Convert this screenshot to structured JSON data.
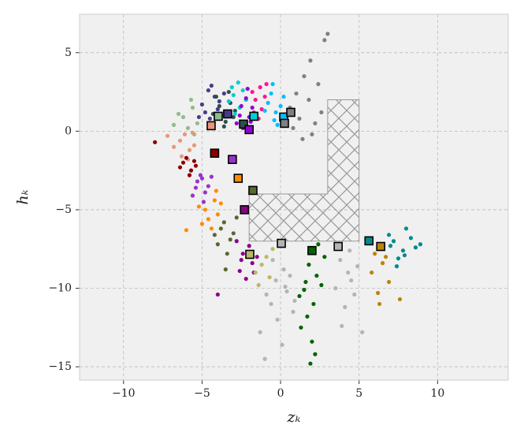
{
  "chart_data": {
    "type": "scatter",
    "xlabel": "zₖ",
    "ylabel": "hₖ",
    "xlim": [
      -12.8,
      14.5
    ],
    "ylim": [
      -15.85,
      7.45
    ],
    "xticks": [
      {
        "value": -10,
        "label": "−10"
      },
      {
        "value": -5,
        "label": "−5"
      },
      0,
      5,
      10
    ],
    "yticks": [
      {
        "value": -15,
        "label": "−15"
      },
      {
        "value": -10,
        "label": "−10"
      },
      {
        "value": -5,
        "label": "−5"
      },
      0,
      5
    ],
    "grid": true,
    "region": {
      "x": [
        3,
        5,
        5,
        -2,
        -2,
        3
      ],
      "y": [
        2,
        2,
        -7,
        -7,
        -4,
        -4
      ]
    },
    "series": [
      {
        "color": "#483d8b",
        "x": [
          -4.8,
          -4.2,
          -5.0,
          -4.5,
          -3.9,
          -4.6,
          -5.2,
          -4.0,
          -4.4,
          -3.6
        ],
        "y": [
          1.2,
          2.2,
          1.7,
          0.8,
          1.9,
          2.6,
          0.9,
          1.4,
          2.9,
          2.4
        ]
      },
      {
        "color": "#2f4f4f",
        "x": [
          -3.8,
          -3.2,
          -4.1,
          -3.5,
          -2.9,
          -3.9,
          -3.3,
          -3.6,
          -4.3,
          -3.0
        ],
        "y": [
          1.0,
          1.8,
          2.2,
          0.6,
          1.3,
          1.6,
          2.5,
          0.3,
          1.1,
          0.9
        ]
      },
      {
        "color": "#00ced1",
        "x": [
          -3.0,
          -2.6,
          -3.3,
          -2.4,
          -2.9,
          -2.2,
          -3.1,
          -2.7
        ],
        "y": [
          2.3,
          1.5,
          1.9,
          2.6,
          1.1,
          2.0,
          2.8,
          3.1
        ]
      },
      {
        "color": "#9400d3",
        "x": [
          -2.5,
          -2.0,
          -2.8,
          -2.2,
          -1.8,
          -2.6,
          -2.1,
          -2.4,
          -1.9
        ],
        "y": [
          1.6,
          0.9,
          0.5,
          2.1,
          1.5,
          1.0,
          2.7,
          0.2,
          0.6
        ]
      },
      {
        "color": "#ff1493",
        "x": [
          -1.6,
          -1.2,
          -1.8,
          -1.0,
          -1.4,
          -0.9,
          -1.7,
          -1.3
        ],
        "y": [
          2.0,
          1.4,
          2.5,
          2.2,
          0.8,
          3.0,
          1.2,
          2.8
        ]
      },
      {
        "color": "#00bfff",
        "x": [
          -0.8,
          -0.3,
          -0.6,
          0.0,
          -0.4,
          -1.0,
          0.2,
          -0.5,
          -0.2
        ],
        "y": [
          1.8,
          1.2,
          2.4,
          1.6,
          0.7,
          1.3,
          2.2,
          3.0,
          0.4
        ]
      },
      {
        "color": "#808080",
        "x": [
          0.6,
          1.2,
          1.8,
          2.2,
          1.0,
          1.5,
          2.6,
          0.8,
          1.9,
          2.4,
          2.8,
          1.4,
          3.0,
          2.0
        ],
        "y": [
          1.5,
          0.8,
          2.0,
          0.5,
          2.4,
          3.5,
          1.2,
          0.2,
          4.5,
          3.0,
          5.8,
          -0.5,
          6.2,
          -0.2
        ]
      },
      {
        "color": "#8fbc8f",
        "x": [
          -6.2,
          -5.6,
          -5.9,
          -5.3,
          -6.5,
          -5.7,
          -6.8,
          -5.5
        ],
        "y": [
          0.9,
          1.5,
          0.2,
          0.5,
          1.1,
          2.0,
          0.4,
          -0.2
        ]
      },
      {
        "color": "#e9967a",
        "x": [
          -6.4,
          -5.8,
          -6.1,
          -5.5,
          -6.8,
          -6.3,
          -7.2,
          -5.6,
          -5.9
        ],
        "y": [
          -0.6,
          -1.2,
          -0.2,
          -0.9,
          -1.0,
          -1.6,
          -0.3,
          -0.1,
          -1.8
        ]
      },
      {
        "color": "#8b0000",
        "x": [
          -6.2,
          -5.7,
          -6.0,
          -5.4,
          -6.4,
          -5.8,
          -8.0,
          -5.5
        ],
        "y": [
          -2.0,
          -2.5,
          -1.7,
          -2.2,
          -2.3,
          -2.8,
          -0.7,
          -1.9
        ]
      },
      {
        "color": "#9932cc",
        "x": [
          -5.3,
          -4.8,
          -5.1,
          -4.6,
          -5.6,
          -4.9,
          -5.4,
          -4.4,
          -5.0
        ],
        "y": [
          -3.2,
          -3.9,
          -2.8,
          -3.5,
          -4.1,
          -4.5,
          -3.6,
          -2.9,
          -3.0
        ]
      },
      {
        "color": "#ff8c00",
        "x": [
          -4.8,
          -4.2,
          -4.6,
          -4.0,
          -5.2,
          -4.4,
          -3.8,
          -5.0,
          -6.0,
          -4.1
        ],
        "y": [
          -5.0,
          -4.4,
          -5.6,
          -5.3,
          -4.8,
          -6.2,
          -4.6,
          -5.9,
          -6.3,
          -3.8
        ]
      },
      {
        "color": "#556b2f",
        "x": [
          -3.8,
          -3.2,
          -3.6,
          -3.0,
          -4.0,
          -3.4,
          -4.2,
          -2.8,
          -3.5
        ],
        "y": [
          -6.2,
          -6.9,
          -5.8,
          -6.5,
          -7.2,
          -7.8,
          -6.6,
          -5.5,
          -8.8
        ]
      },
      {
        "color": "#8b008b",
        "x": [
          -2.4,
          -1.8,
          -2.6,
          -2.0,
          -1.5,
          -2.8,
          -2.2,
          -1.7,
          -2.5,
          -4.0
        ],
        "y": [
          -7.8,
          -8.4,
          -8.9,
          -7.3,
          -8.0,
          -7.0,
          -9.4,
          -9.0,
          -8.2,
          -10.4
        ]
      },
      {
        "color": "#bdb76b",
        "x": [
          -1.2,
          -0.7,
          -1.4,
          -0.9,
          -1.6,
          -0.5
        ],
        "y": [
          -8.5,
          -9.3,
          -9.8,
          -8.0,
          -9.0,
          -7.5
        ]
      },
      {
        "color": "#b4b4b4",
        "x": [
          -0.3,
          0.4,
          -0.6,
          0.2,
          -0.9,
          0.6,
          -0.2,
          0.8,
          -1.3,
          0.1,
          -0.5,
          0.9,
          -1.0,
          0.3
        ],
        "y": [
          -9.5,
          -10.2,
          -11.0,
          -8.8,
          -10.4,
          -9.2,
          -12.0,
          -11.5,
          -12.8,
          -13.6,
          -8.2,
          -10.8,
          -14.5,
          -9.9
        ]
      },
      {
        "color": "#006400",
        "x": [
          1.8,
          2.3,
          1.5,
          2.1,
          2.6,
          1.3,
          2.0,
          2.4,
          1.7,
          1.2,
          2.2,
          1.9,
          2.8,
          1.6
        ],
        "y": [
          -8.5,
          -9.2,
          -10.1,
          -11.0,
          -9.8,
          -12.5,
          -13.4,
          -7.2,
          -11.8,
          -10.5,
          -14.2,
          -14.8,
          -8.0,
          -9.6
        ]
      },
      {
        "color": "#b4b4b4",
        "x": [
          3.8,
          4.3,
          4.7,
          3.5,
          4.1,
          4.9,
          3.9,
          4.5,
          5.2,
          4.4
        ],
        "y": [
          -8.2,
          -9.0,
          -10.4,
          -10.0,
          -11.2,
          -8.6,
          -12.4,
          -9.5,
          -12.8,
          -7.6
        ]
      },
      {
        "color": "#b8860b",
        "x": [
          6.0,
          6.5,
          6.9,
          6.2,
          5.8,
          6.7,
          7.6,
          6.3
        ],
        "y": [
          -7.8,
          -8.4,
          -9.6,
          -10.3,
          -9.0,
          -8.0,
          -10.7,
          -11.0
        ]
      },
      {
        "color": "#008b8b",
        "x": [
          7.2,
          7.8,
          8.3,
          7.5,
          8.0,
          6.9,
          8.6,
          7.4,
          7.9,
          8.9,
          7.0
        ],
        "y": [
          -7.0,
          -7.6,
          -6.8,
          -8.1,
          -6.2,
          -6.6,
          -7.4,
          -8.6,
          -7.9,
          -7.2,
          -7.3
        ]
      }
    ],
    "centers": {
      "x": [
        -4.42,
        -3.97,
        -3.37,
        -2.36,
        -2.0,
        -1.7,
        0.2,
        0.25,
        0.65,
        -4.2,
        -3.07,
        -2.7,
        -1.76,
        -2.3,
        -1.96,
        0.05,
        2.0,
        3.67,
        5.63,
        6.38
      ],
      "y": [
        0.35,
        0.95,
        1.1,
        0.45,
        0.1,
        0.95,
        0.9,
        0.5,
        1.2,
        -1.4,
        -1.8,
        -3.0,
        -3.77,
        -5.0,
        -7.84,
        -7.14,
        -7.6,
        -7.34,
        -6.98,
        -7.34
      ],
      "colors": [
        "#e9967a",
        "#8fbc8f",
        "#483d8b",
        "#2f4f4f",
        "#9400d3",
        "#00ced1",
        "#00bfff",
        "#808080",
        "#808080",
        "#8b0000",
        "#9932cc",
        "#ff8c00",
        "#556b2f",
        "#8b008b",
        "#bdb76b",
        "#b4b4b4",
        "#006400",
        "#b4b4b4",
        "#008b8b",
        "#b8860b"
      ]
    }
  }
}
